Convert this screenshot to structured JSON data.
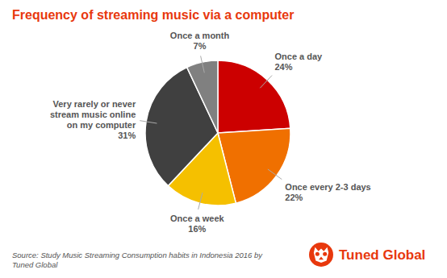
{
  "chart_data": {
    "type": "pie",
    "title": "Frequency of streaming music via a computer",
    "categories": [
      "Once a day",
      "Once every 2-3 days",
      "Once a week",
      "Very rarely or never\nstream music online\non my computer",
      "Once a month"
    ],
    "values": [
      24,
      22,
      16,
      31,
      7
    ],
    "value_labels": [
      "24%",
      "22%",
      "16%",
      "31%",
      "7%"
    ],
    "colors": [
      "#CC0000",
      "#F07000",
      "#F5C000",
      "#404040",
      "#808080"
    ],
    "data_labels": true,
    "annotations": [
      "Source: Study Music Streaming Consumption habits in Indonesia 2016 by\nTuned Global",
      "Tuned Global"
    ]
  }
}
